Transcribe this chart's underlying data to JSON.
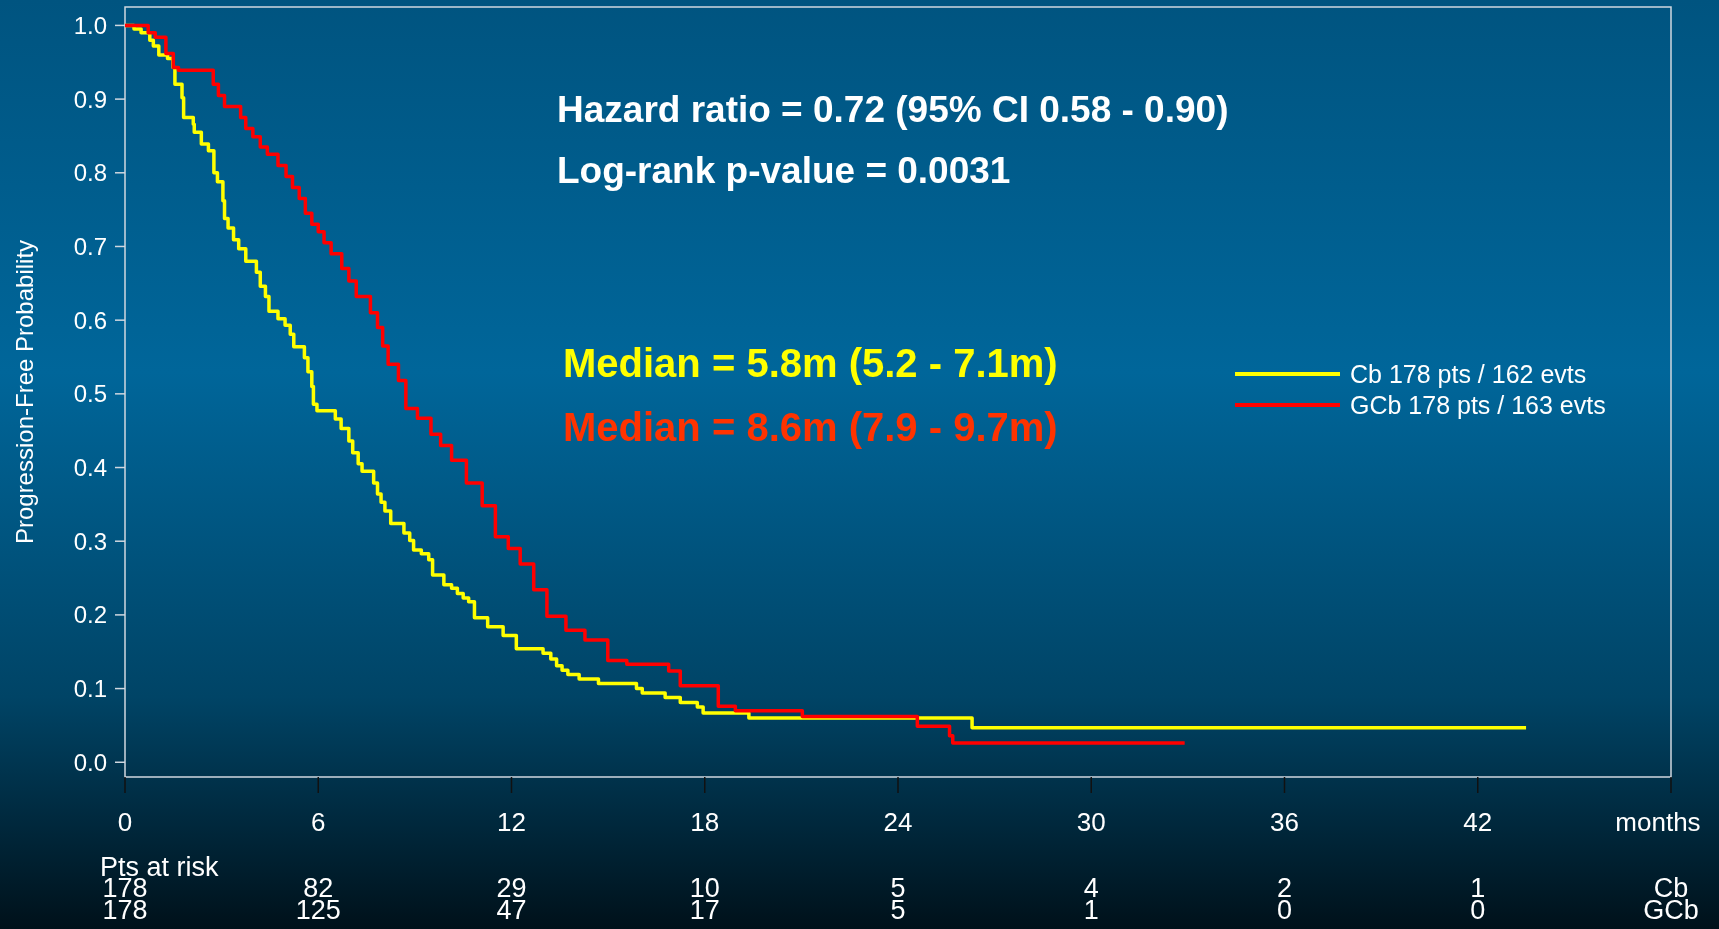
{
  "chart_data": {
    "type": "step",
    "ylabel": "Progression-Free Probability",
    "xlabel": "months",
    "xlim": [
      0,
      48
    ],
    "xticks": [
      0,
      6,
      12,
      18,
      24,
      30,
      36,
      42,
      {
        "value": 48,
        "label": null
      }
    ],
    "ylim": [
      -0.02,
      1.025
    ],
    "yticks": [
      {
        "value": 0,
        "label": "0.0"
      },
      0.1,
      0.2,
      0.3,
      0.4,
      0.5,
      0.6,
      0.7,
      0.8,
      0.9,
      {
        "value": 1,
        "label": "1.0"
      }
    ],
    "grid": false,
    "legend": "right",
    "series": [
      {
        "name": "Cb 178 pts / 162 evts",
        "color": "#ffff00",
        "x": [
          0,
          0.28,
          0.5,
          0.77,
          0.88,
          1.05,
          1.32,
          1.49,
          1.55,
          1.77,
          1.82,
          2.12,
          2.15,
          2.37,
          2.59,
          2.76,
          2.87,
          3.04,
          3.09,
          3.2,
          3.37,
          3.53,
          3.75,
          4.08,
          4.2,
          4.36,
          4.47,
          4.75,
          4.97,
          5.13,
          5.24,
          5.57,
          5.68,
          5.8,
          5.85,
          5.96,
          6.53,
          6.71,
          6.95,
          7.07,
          7.24,
          7.36,
          7.72,
          7.84,
          7.95,
          8.07,
          8.25,
          8.66,
          8.84,
          8.96,
          9.2,
          9.43,
          9.55,
          9.9,
          10.14,
          10.32,
          10.5,
          10.67,
          10.85,
          11.26,
          11.74,
          12.15,
          12.98,
          13.22,
          13.4,
          13.57,
          13.75,
          14.1,
          14.7,
          15.88,
          16.06,
          16.77,
          17.24,
          17.77,
          17.95,
          19.37,
          26.3,
          43.5
        ],
        "values": [
          1,
          0.995,
          0.99,
          0.98,
          0.972,
          0.96,
          0.955,
          0.943,
          0.92,
          0.902,
          0.875,
          0.866,
          0.855,
          0.839,
          0.83,
          0.8,
          0.788,
          0.762,
          0.738,
          0.725,
          0.709,
          0.697,
          0.68,
          0.665,
          0.646,
          0.632,
          0.612,
          0.602,
          0.593,
          0.581,
          0.564,
          0.549,
          0.53,
          0.51,
          0.486,
          0.477,
          0.466,
          0.453,
          0.436,
          0.42,
          0.405,
          0.395,
          0.379,
          0.364,
          0.353,
          0.341,
          0.324,
          0.311,
          0.301,
          0.288,
          0.283,
          0.275,
          0.254,
          0.241,
          0.236,
          0.229,
          0.223,
          0.218,
          0.196,
          0.184,
          0.172,
          0.154,
          0.148,
          0.14,
          0.131,
          0.125,
          0.119,
          0.113,
          0.107,
          0.1,
          0.094,
          0.088,
          0.081,
          0.075,
          0.067,
          0.06,
          0.047,
          0.047
        ]
      },
      {
        "name": "GCb 178 pts / 163 evts",
        "color": "#ff0000",
        "x": [
          0,
          0.72,
          0.94,
          1.27,
          1.5,
          1.66,
          2.74,
          2.9,
          3.09,
          3.59,
          3.75,
          3.97,
          4.2,
          4.42,
          4.75,
          5.0,
          5.2,
          5.41,
          5.6,
          5.8,
          6.0,
          6.18,
          6.4,
          6.73,
          6.95,
          7.18,
          7.62,
          7.84,
          8.0,
          8.17,
          8.49,
          8.72,
          9.08,
          9.5,
          9.8,
          10.14,
          10.6,
          11.09,
          11.5,
          11.9,
          12.27,
          12.69,
          13.1,
          13.69,
          14.28,
          14.99,
          15.58,
          16.88,
          17.24,
          18.42,
          18.95,
          21.03,
          24.6,
          25.6,
          25.7,
          32.9
        ],
        "values": [
          1,
          0.99,
          0.984,
          0.962,
          0.943,
          0.939,
          0.92,
          0.905,
          0.89,
          0.875,
          0.86,
          0.849,
          0.835,
          0.825,
          0.81,
          0.795,
          0.78,
          0.765,
          0.745,
          0.73,
          0.72,
          0.705,
          0.69,
          0.67,
          0.653,
          0.632,
          0.61,
          0.59,
          0.565,
          0.54,
          0.518,
          0.48,
          0.467,
          0.445,
          0.43,
          0.41,
          0.379,
          0.348,
          0.306,
          0.29,
          0.269,
          0.234,
          0.198,
          0.179,
          0.166,
          0.138,
          0.133,
          0.124,
          0.104,
          0.076,
          0.07,
          0.062,
          0.049,
          0.036,
          0.026,
          0.026
        ]
      }
    ],
    "annotations": [
      "Hazard ratio = 0.72 (95% CI 0.58 - 0.90)",
      "Log-rank p-value = 0.0031",
      "Median = 5.8m (5.2 - 7.1m)",
      "Median = 8.6m (7.9 - 9.7m)",
      "Pts at risk",
      "178",
      "82",
      "29",
      "10",
      "5",
      "4",
      "2",
      "1",
      "Cb",
      "178",
      "125",
      "47",
      "17",
      "5",
      "1",
      "0",
      "0",
      "GCb"
    ]
  }
}
